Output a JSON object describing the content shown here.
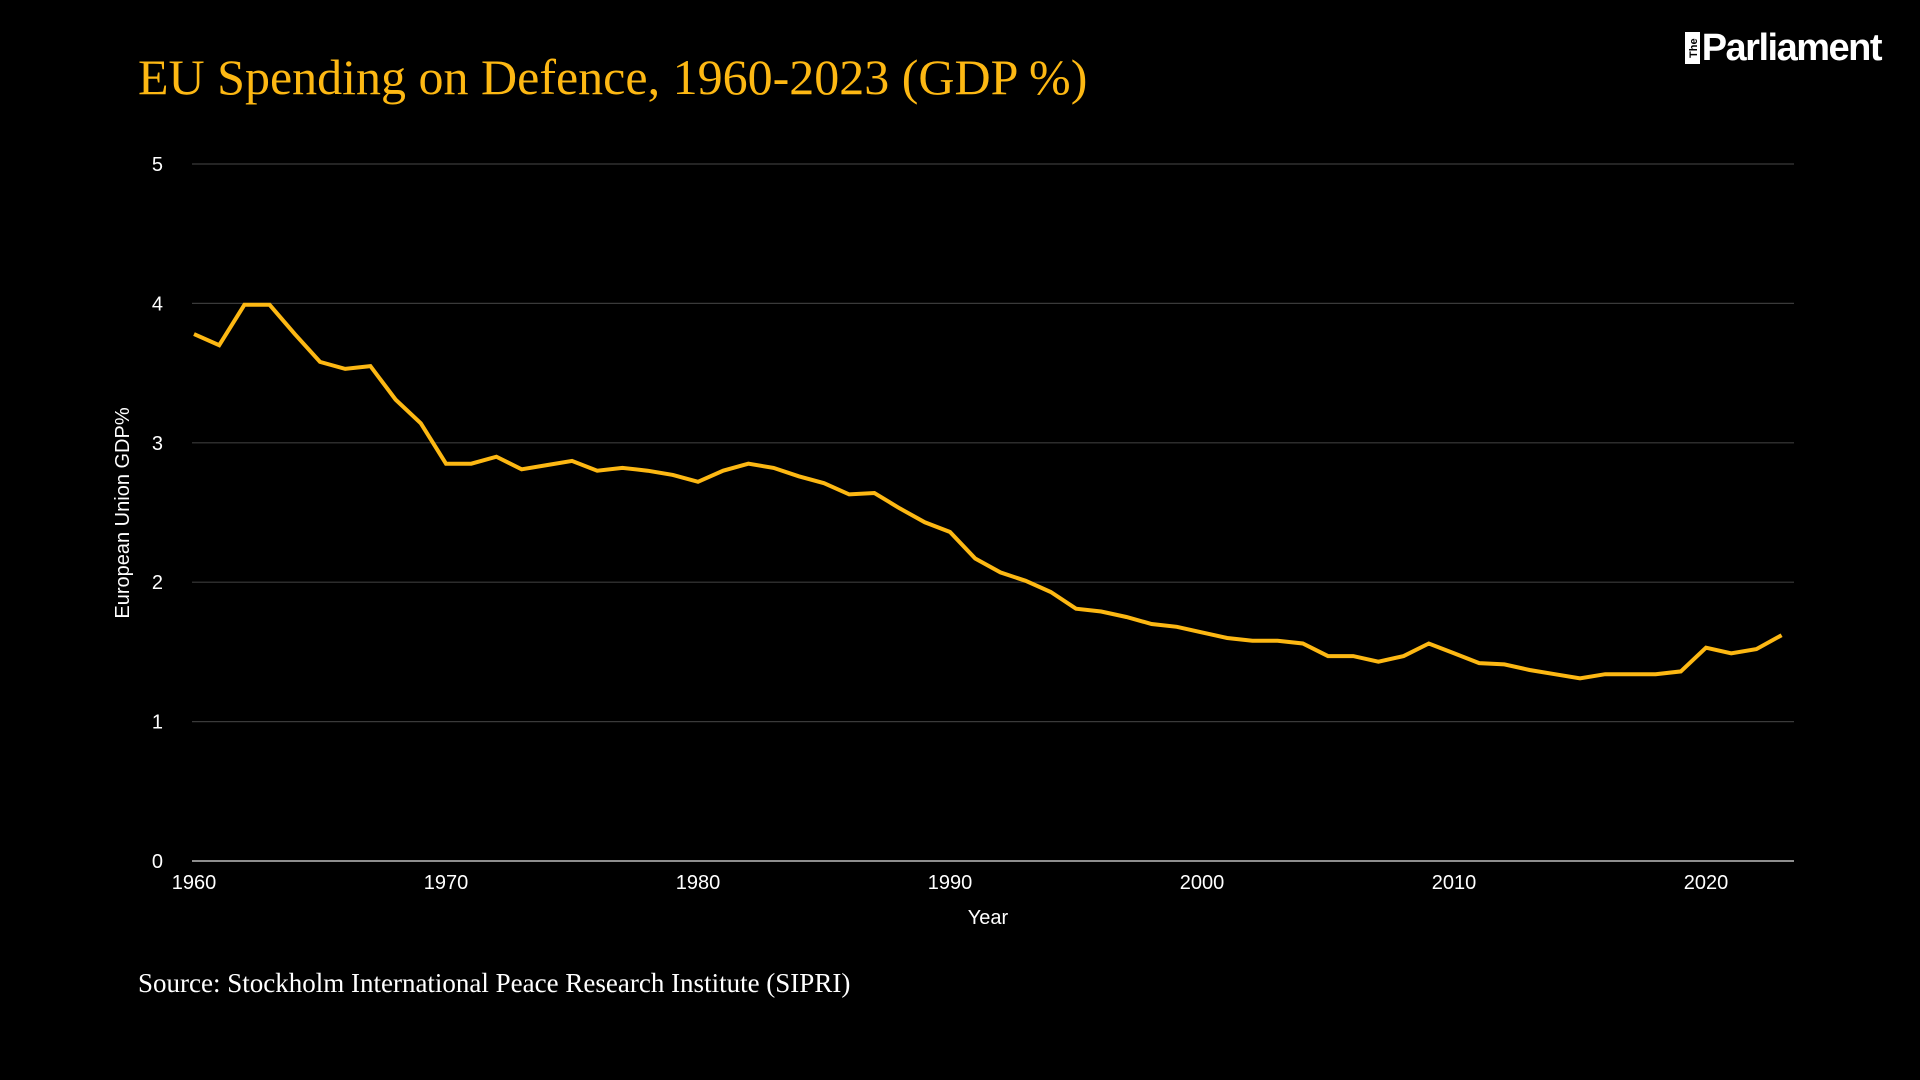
{
  "header": {
    "title": "EU Spending on Defence, 1960-2023 (GDP %)",
    "logo_prefix": "The",
    "logo_text": "Parliament"
  },
  "footer": {
    "source": "Source: Stockholm International Peace Research Institute (SIPRI)"
  },
  "colors": {
    "background": "#000000",
    "line": "#FDB813",
    "title": "#FDB813",
    "grid": "#3a3a3a",
    "axis": "#bdbdbd",
    "text": "#ffffff"
  },
  "chart_data": {
    "type": "line",
    "title": "EU Spending on Defence, 1960-2023 (GDP %)",
    "xlabel": "Year",
    "ylabel": "European Union GDP%",
    "xlim": [
      1960,
      2023
    ],
    "ylim": [
      0,
      5
    ],
    "x_ticks": [
      1960,
      1970,
      1980,
      1990,
      2000,
      2010,
      2020
    ],
    "y_ticks": [
      0,
      1,
      2,
      3,
      4,
      5
    ],
    "grid": "horizontal",
    "legend": "none",
    "series": [
      {
        "name": "European Union",
        "x": [
          1960,
          1961,
          1962,
          1963,
          1964,
          1965,
          1966,
          1967,
          1968,
          1969,
          1970,
          1971,
          1972,
          1973,
          1974,
          1975,
          1976,
          1977,
          1978,
          1979,
          1980,
          1981,
          1982,
          1983,
          1984,
          1985,
          1986,
          1987,
          1988,
          1989,
          1990,
          1991,
          1992,
          1993,
          1994,
          1995,
          1996,
          1997,
          1998,
          1999,
          2000,
          2001,
          2002,
          2003,
          2004,
          2005,
          2006,
          2007,
          2008,
          2009,
          2010,
          2011,
          2012,
          2013,
          2014,
          2015,
          2016,
          2017,
          2018,
          2019,
          2020,
          2021,
          2022,
          2023
        ],
        "values": [
          3.78,
          3.7,
          3.99,
          3.99,
          3.78,
          3.58,
          3.53,
          3.55,
          3.31,
          3.14,
          2.85,
          2.85,
          2.9,
          2.81,
          2.84,
          2.87,
          2.8,
          2.82,
          2.8,
          2.77,
          2.72,
          2.8,
          2.85,
          2.82,
          2.76,
          2.71,
          2.63,
          2.64,
          2.53,
          2.43,
          2.36,
          2.17,
          2.07,
          2.01,
          1.93,
          1.81,
          1.79,
          1.75,
          1.7,
          1.68,
          1.64,
          1.6,
          1.58,
          1.58,
          1.56,
          1.47,
          1.47,
          1.43,
          1.47,
          1.56,
          1.49,
          1.42,
          1.41,
          1.37,
          1.34,
          1.31,
          1.34,
          1.34,
          1.34,
          1.36,
          1.53,
          1.49,
          1.52,
          1.62
        ]
      }
    ]
  }
}
